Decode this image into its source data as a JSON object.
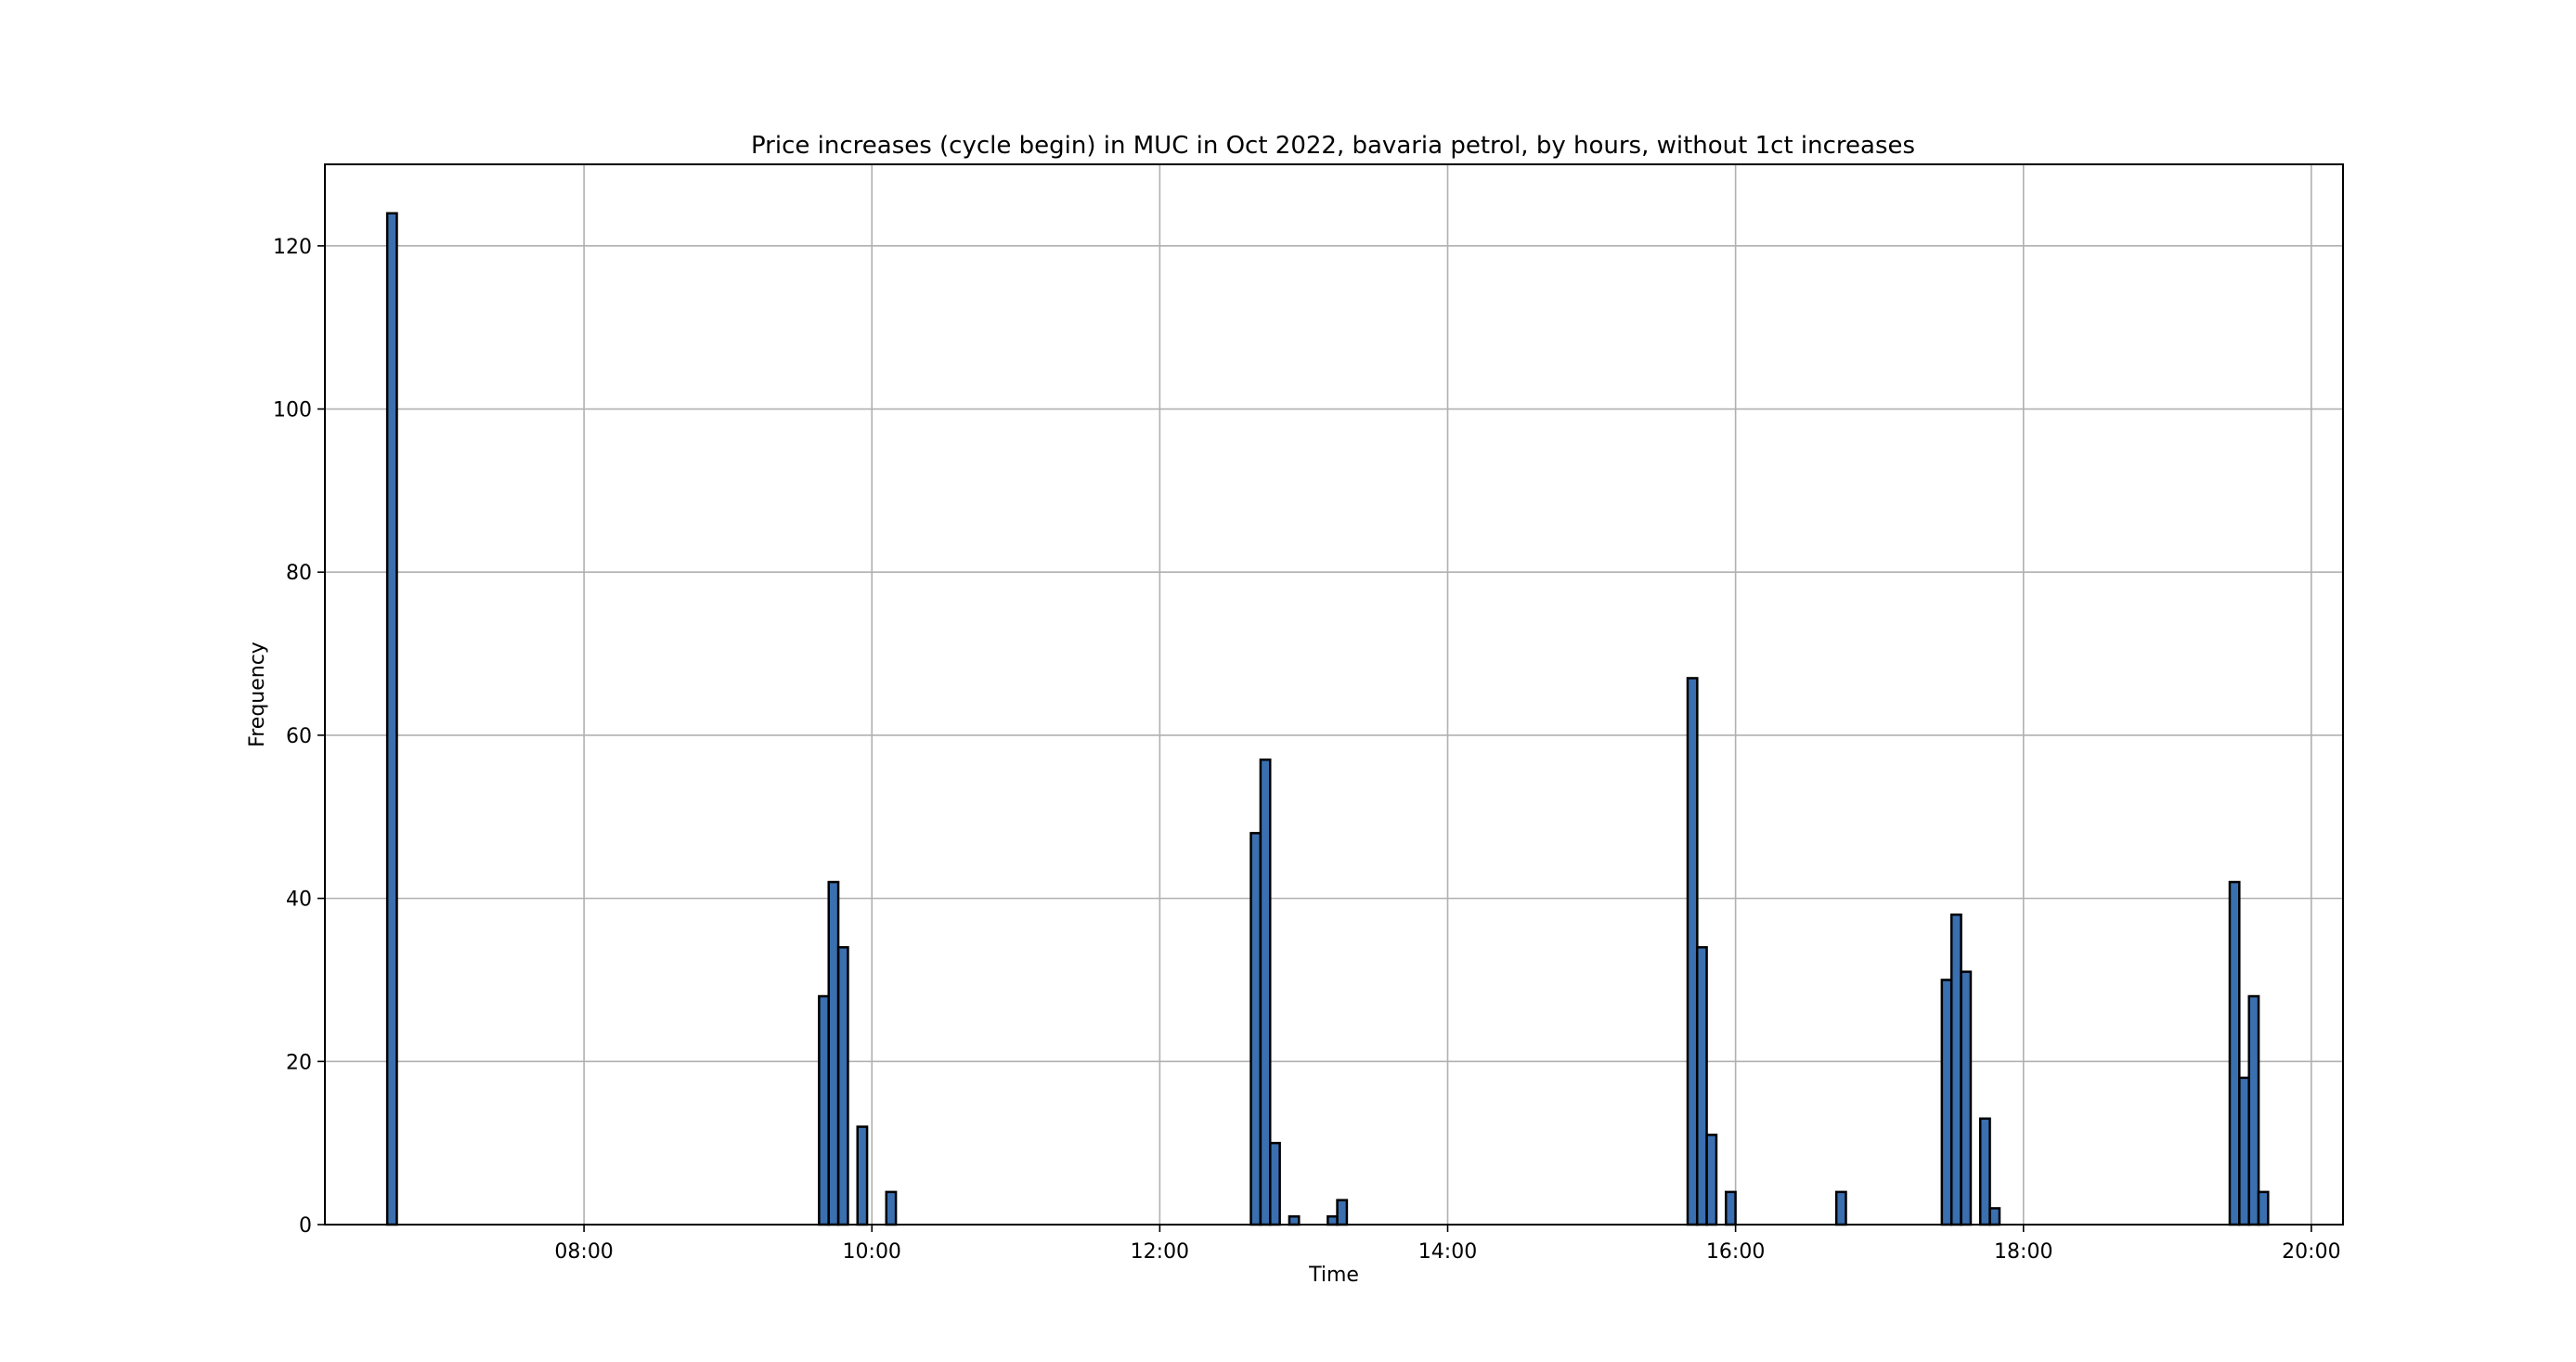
{
  "chart_data": {
    "type": "bar",
    "title": "Price increases (cycle begin) in MUC in Oct 2022, bavaria petrol, by hours, without 1ct increases",
    "xlabel": "Time",
    "ylabel": "Frequency",
    "xlim_hours": [
      6.2,
      20.22
    ],
    "ylim": [
      0,
      130
    ],
    "bin_width_hours": 0.0667,
    "x_ticks": [
      "08:00",
      "10:00",
      "12:00",
      "14:00",
      "16:00",
      "18:00",
      "20:00"
    ],
    "x_tick_hours": [
      8,
      10,
      12,
      14,
      16,
      18,
      20
    ],
    "y_ticks": [
      0,
      20,
      40,
      60,
      80,
      100,
      120
    ],
    "grid": true,
    "bar_color": "#3a6fb0",
    "bars": [
      {
        "start": 6.633,
        "value": 124
      },
      {
        "start": 9.633,
        "value": 28
      },
      {
        "start": 9.7,
        "value": 42
      },
      {
        "start": 9.767,
        "value": 34
      },
      {
        "start": 9.9,
        "value": 12
      },
      {
        "start": 10.1,
        "value": 4
      },
      {
        "start": 12.633,
        "value": 48
      },
      {
        "start": 12.7,
        "value": 57
      },
      {
        "start": 12.767,
        "value": 10
      },
      {
        "start": 12.9,
        "value": 1
      },
      {
        "start": 13.167,
        "value": 1
      },
      {
        "start": 13.233,
        "value": 3
      },
      {
        "start": 15.667,
        "value": 67
      },
      {
        "start": 15.733,
        "value": 34
      },
      {
        "start": 15.8,
        "value": 11
      },
      {
        "start": 15.933,
        "value": 4
      },
      {
        "start": 16.7,
        "value": 4
      },
      {
        "start": 17.433,
        "value": 30
      },
      {
        "start": 17.5,
        "value": 38
      },
      {
        "start": 17.567,
        "value": 31
      },
      {
        "start": 17.7,
        "value": 13
      },
      {
        "start": 17.767,
        "value": 2
      },
      {
        "start": 19.433,
        "value": 42
      },
      {
        "start": 19.5,
        "value": 18
      },
      {
        "start": 19.567,
        "value": 28
      },
      {
        "start": 19.633,
        "value": 4
      }
    ]
  }
}
